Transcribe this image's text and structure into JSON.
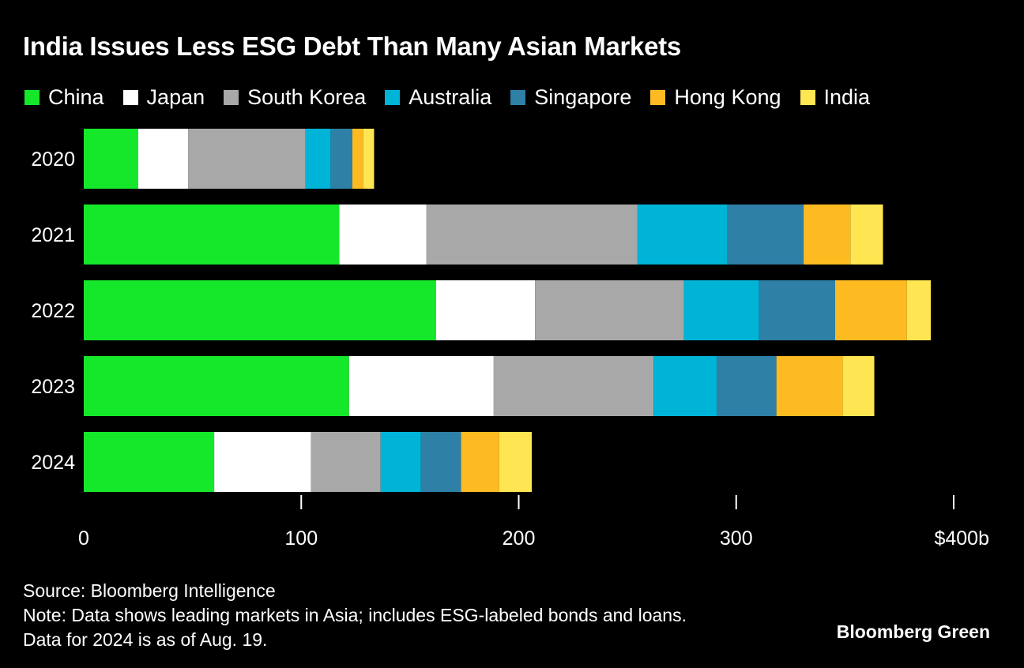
{
  "title": "India Issues Less ESG Debt Than Many Asian Markets",
  "footer": {
    "source": "Source: Bloomberg Intelligence",
    "note": "Note: Data shows leading markets in Asia; includes ESG-labeled bonds and loans.",
    "note2": "Data for 2024 is as of Aug. 19."
  },
  "brand": "Bloomberg Green",
  "chart_data": {
    "type": "bar",
    "orientation": "horizontal",
    "stacked": true,
    "title": "India Issues Less ESG Debt Than Many Asian Markets",
    "xlabel": "",
    "ylabel": "",
    "xlim": [
      0,
      400
    ],
    "categories": [
      "2020",
      "2021",
      "2022",
      "2023",
      "2024"
    ],
    "x_ticks": [
      {
        "value": 0,
        "label": "0"
      },
      {
        "value": 100,
        "label": "100"
      },
      {
        "value": 200,
        "label": "200"
      },
      {
        "value": 300,
        "label": "300"
      },
      {
        "value": 400,
        "label": "$400b"
      }
    ],
    "series": [
      {
        "name": "China",
        "color": "#15e82a",
        "values": [
          25,
          117.5,
          162,
          122,
          60
        ]
      },
      {
        "name": "Japan",
        "color": "#ffffff",
        "values": [
          23,
          40,
          45.5,
          66.5,
          44.5
        ]
      },
      {
        "name": "South Korea",
        "color": "#a8a8a8",
        "values": [
          54,
          97,
          68.5,
          73.5,
          32
        ]
      },
      {
        "name": "Australia",
        "color": "#00b4d8",
        "values": [
          11.5,
          41.5,
          34.5,
          29,
          18.5
        ]
      },
      {
        "name": "Singapore",
        "color": "#2e80a6",
        "values": [
          10,
          35,
          35,
          27.5,
          18.5
        ]
      },
      {
        "name": "Hong Kong",
        "color": "#fdbb21",
        "values": [
          5,
          21.5,
          33,
          30.5,
          17.5
        ]
      },
      {
        "name": "India",
        "color": "#fee552",
        "values": [
          5,
          15,
          11,
          14.5,
          15
        ]
      }
    ],
    "legend_position": "top"
  }
}
